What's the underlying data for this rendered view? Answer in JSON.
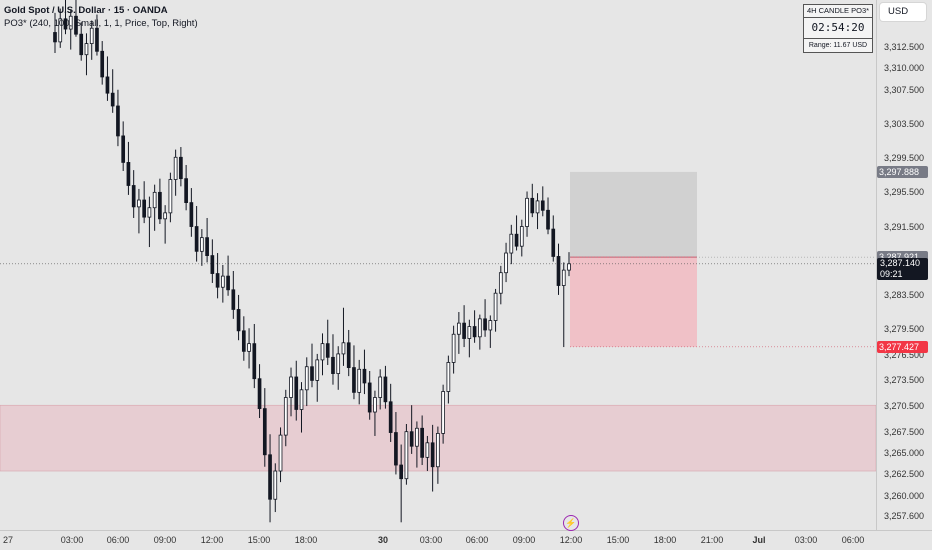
{
  "header": {
    "symbol_line": "Gold Spot / U.S. Dollar · 15 · OANDA",
    "indicator_line": "PO3* (240, 100, Small, 1, 1, Price, Top, Right)"
  },
  "currency_button": "USD",
  "candle_box": {
    "title": "4H CANDLE PO3*",
    "countdown": "02:54:20",
    "range": "Range: 11.67 USD"
  },
  "price_axis": {
    "ticks": [
      "3,312.500",
      "3,310.000",
      "3,307.500",
      "3,303.500",
      "3,299.500",
      "3,295.500",
      "3,291.500",
      "3,287.500",
      "3,283.500",
      "3,279.500",
      "3,276.500",
      "3,273.500",
      "3,270.500",
      "3,267.500",
      "3,265.000",
      "3,262.500",
      "3,260.000",
      "3,257.600"
    ]
  },
  "price_labels": {
    "target": "3,297.888",
    "entry": "3,287.921",
    "current_price": "3,287.140",
    "current_timer": "09:21",
    "stop": "3,277.427"
  },
  "time_axis": {
    "ticks": [
      "27",
      "03:00",
      "06:00",
      "09:00",
      "12:00",
      "15:00",
      "18:00",
      "30",
      "03:00",
      "06:00",
      "09:00",
      "12:00",
      "15:00",
      "18:00",
      "21:00",
      "Jul",
      "03:00",
      "06:00"
    ]
  },
  "icons": {
    "replay": "lightning-icon"
  },
  "colors": {
    "background": "#e6e6e6",
    "candle": "#131722",
    "zone_fill": "#e8bcc4",
    "profit_fill": "#cccccc",
    "loss_fill": "#f2b8bf",
    "stop_label": "#f23645",
    "target_label": "#787b86"
  },
  "chart_data": {
    "type": "candlestick",
    "ohlc": [
      [
        3314.2,
        3316.5,
        3311.8,
        3313.1
      ],
      [
        3313.1,
        3317.0,
        3312.4,
        3315.8
      ],
      [
        3315.8,
        3318.2,
        3314.0,
        3314.6
      ],
      [
        3314.6,
        3316.9,
        3312.2,
        3316.1
      ],
      [
        3316.1,
        3318.0,
        3313.7,
        3314.0
      ],
      [
        3314.0,
        3315.4,
        3310.9,
        3311.6
      ],
      [
        3311.6,
        3314.1,
        3309.2,
        3312.9
      ],
      [
        3312.9,
        3315.6,
        3311.0,
        3314.7
      ],
      [
        3314.7,
        3316.3,
        3311.5,
        3312.0
      ],
      [
        3312.0,
        3313.2,
        3308.1,
        3309.0
      ],
      [
        3309.0,
        3311.4,
        3306.2,
        3307.1
      ],
      [
        3307.1,
        3309.9,
        3304.8,
        3305.6
      ],
      [
        3305.6,
        3307.5,
        3300.9,
        3302.1
      ],
      [
        3302.1,
        3303.8,
        3298.0,
        3299.0
      ],
      [
        3299.0,
        3301.4,
        3295.2,
        3296.3
      ],
      [
        3296.3,
        3298.1,
        3292.5,
        3293.8
      ],
      [
        3293.8,
        3295.9,
        3290.7,
        3294.6
      ],
      [
        3294.6,
        3296.8,
        3291.9,
        3292.6
      ],
      [
        3292.6,
        3295.0,
        3289.1,
        3293.7
      ],
      [
        3293.7,
        3296.4,
        3291.0,
        3295.5
      ],
      [
        3295.5,
        3297.1,
        3291.8,
        3292.4
      ],
      [
        3292.4,
        3294.0,
        3289.5,
        3293.1
      ],
      [
        3293.1,
        3297.8,
        3292.0,
        3297.0
      ],
      [
        3297.0,
        3300.5,
        3295.1,
        3299.6
      ],
      [
        3299.6,
        3300.8,
        3296.2,
        3297.1
      ],
      [
        3297.1,
        3298.7,
        3293.4,
        3294.3
      ],
      [
        3294.3,
        3296.0,
        3290.3,
        3291.5
      ],
      [
        3291.5,
        3293.9,
        3287.4,
        3288.6
      ],
      [
        3288.6,
        3291.2,
        3286.9,
        3290.2
      ],
      [
        3290.2,
        3292.5,
        3287.3,
        3288.1
      ],
      [
        3288.1,
        3290.0,
        3284.9,
        3286.0
      ],
      [
        3286.0,
        3288.4,
        3283.1,
        3284.4
      ],
      [
        3284.4,
        3287.0,
        3282.6,
        3285.7
      ],
      [
        3285.7,
        3288.1,
        3283.4,
        3284.1
      ],
      [
        3284.1,
        3286.3,
        3280.7,
        3281.8
      ],
      [
        3281.8,
        3283.5,
        3278.2,
        3279.3
      ],
      [
        3279.3,
        3281.0,
        3275.8,
        3276.9
      ],
      [
        3276.9,
        3279.6,
        3274.9,
        3277.8
      ],
      [
        3277.8,
        3280.1,
        3272.6,
        3273.7
      ],
      [
        3273.7,
        3275.4,
        3269.1,
        3270.2
      ],
      [
        3270.2,
        3272.6,
        3263.4,
        3264.8
      ],
      [
        3264.8,
        3267.2,
        3256.9,
        3259.6
      ],
      [
        3259.6,
        3263.8,
        3258.1,
        3262.9
      ],
      [
        3262.9,
        3268.0,
        3261.6,
        3267.1
      ],
      [
        3267.1,
        3272.4,
        3265.8,
        3271.5
      ],
      [
        3271.5,
        3275.0,
        3269.3,
        3273.9
      ],
      [
        3273.9,
        3275.8,
        3268.8,
        3270.1
      ],
      [
        3270.1,
        3273.3,
        3267.4,
        3272.4
      ],
      [
        3272.4,
        3276.2,
        3270.5,
        3275.1
      ],
      [
        3275.1,
        3277.8,
        3272.7,
        3273.5
      ],
      [
        3273.5,
        3276.6,
        3271.0,
        3275.9
      ],
      [
        3275.9,
        3279.0,
        3274.1,
        3277.8
      ],
      [
        3277.8,
        3280.6,
        3275.3,
        3276.2
      ],
      [
        3276.2,
        3278.9,
        3273.0,
        3274.3
      ],
      [
        3274.3,
        3277.5,
        3272.4,
        3276.6
      ],
      [
        3276.6,
        3282.0,
        3275.2,
        3277.9
      ],
      [
        3277.9,
        3279.4,
        3274.0,
        3275.0
      ],
      [
        3275.0,
        3277.6,
        3271.3,
        3272.1
      ],
      [
        3272.1,
        3275.9,
        3270.7,
        3274.8
      ],
      [
        3274.8,
        3277.1,
        3271.9,
        3273.2
      ],
      [
        3273.2,
        3274.6,
        3268.9,
        3269.8
      ],
      [
        3269.8,
        3272.3,
        3267.0,
        3271.5
      ],
      [
        3271.5,
        3274.8,
        3270.1,
        3273.9
      ],
      [
        3273.9,
        3275.2,
        3270.2,
        3271.0
      ],
      [
        3271.0,
        3273.1,
        3266.3,
        3267.4
      ],
      [
        3267.4,
        3269.8,
        3262.5,
        3263.6
      ],
      [
        3263.6,
        3266.0,
        3256.9,
        3262.0
      ],
      [
        3262.0,
        3268.4,
        3261.3,
        3267.5
      ],
      [
        3267.5,
        3270.6,
        3264.9,
        3265.8
      ],
      [
        3265.8,
        3268.7,
        3263.3,
        3267.9
      ],
      [
        3267.9,
        3269.4,
        3263.6,
        3264.5
      ],
      [
        3264.5,
        3267.0,
        3262.9,
        3266.2
      ],
      [
        3266.2,
        3268.3,
        3260.5,
        3263.4
      ],
      [
        3263.4,
        3268.1,
        3261.4,
        3267.3
      ],
      [
        3267.3,
        3273.0,
        3266.1,
        3272.2
      ],
      [
        3272.2,
        3276.4,
        3270.8,
        3275.6
      ],
      [
        3275.6,
        3279.9,
        3274.3,
        3278.9
      ],
      [
        3278.9,
        3281.5,
        3276.6,
        3280.2
      ],
      [
        3280.2,
        3282.3,
        3277.4,
        3278.4
      ],
      [
        3278.4,
        3280.6,
        3276.2,
        3279.8
      ],
      [
        3279.8,
        3281.7,
        3277.9,
        3278.6
      ],
      [
        3278.6,
        3281.2,
        3277.1,
        3280.7
      ],
      [
        3280.7,
        3283.0,
        3278.6,
        3279.4
      ],
      [
        3279.4,
        3281.1,
        3277.3,
        3280.5
      ],
      [
        3280.5,
        3284.2,
        3279.2,
        3283.7
      ],
      [
        3283.7,
        3286.9,
        3282.4,
        3286.1
      ],
      [
        3286.1,
        3289.6,
        3285.0,
        3288.4
      ],
      [
        3288.4,
        3291.7,
        3287.1,
        3290.6
      ],
      [
        3290.6,
        3292.8,
        3288.7,
        3289.2
      ],
      [
        3289.2,
        3292.3,
        3288.0,
        3291.5
      ],
      [
        3291.5,
        3295.6,
        3290.3,
        3294.8
      ],
      [
        3294.8,
        3296.5,
        3292.6,
        3293.1
      ],
      [
        3293.1,
        3295.4,
        3291.2,
        3294.5
      ],
      [
        3294.5,
        3296.2,
        3292.7,
        3293.4
      ],
      [
        3293.4,
        3294.9,
        3290.6,
        3291.2
      ],
      [
        3291.2,
        3292.8,
        3287.4,
        3288.0
      ],
      [
        3288.0,
        3289.5,
        3283.5,
        3284.6
      ],
      [
        3284.6,
        3287.3,
        3277.4,
        3286.4
      ],
      [
        3286.4,
        3288.5,
        3285.7,
        3287.14
      ]
    ],
    "price_range": [
      3256.0,
      3318.0
    ],
    "zones": [
      {
        "kind": "demand",
        "from_price": 3262.9,
        "to_price": 3270.6
      },
      {
        "kind": "target",
        "from_price": 3287.921,
        "to_price": 3297.888
      },
      {
        "kind": "stop",
        "from_price": 3277.427,
        "to_price": 3287.921
      }
    ],
    "levels": {
      "entry": 3287.921,
      "current": 3287.14,
      "target": 3297.888,
      "stop": 3277.427
    }
  }
}
